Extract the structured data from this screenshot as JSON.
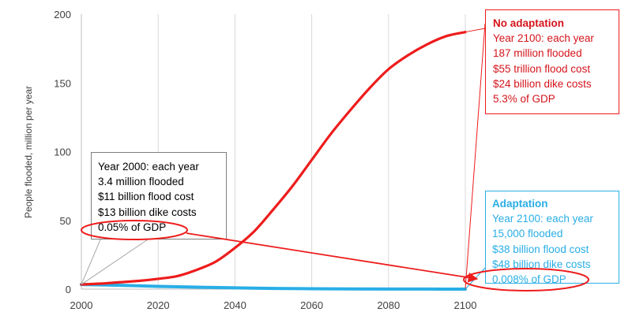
{
  "chart_data": {
    "type": "line",
    "title": "",
    "xlabel": "",
    "ylabel": "People flooded, million per year",
    "xlim": [
      2000,
      2100
    ],
    "ylim": [
      0,
      200
    ],
    "x_ticks": [
      2000,
      2020,
      2040,
      2060,
      2080,
      2100
    ],
    "y_ticks": [
      0,
      50,
      100,
      150,
      200
    ],
    "series": [
      {
        "name": "No adaptation",
        "color": "#ee1c1c",
        "x": [
          2000,
          2005,
          2010,
          2015,
          2020,
          2025,
          2030,
          2035,
          2040,
          2045,
          2050,
          2055,
          2060,
          2065,
          2070,
          2075,
          2080,
          2085,
          2090,
          2095,
          2100
        ],
        "y": [
          3.4,
          4,
          5,
          6,
          7.5,
          9.5,
          14,
          20,
          30,
          42,
          58,
          75,
          94,
          113,
          130,
          146,
          160,
          170,
          178,
          184,
          187
        ]
      },
      {
        "name": "Adaptation",
        "color": "#29aee6",
        "x": [
          2000,
          2010,
          2020,
          2030,
          2040,
          2050,
          2060,
          2070,
          2080,
          2090,
          2100
        ],
        "y": [
          3.4,
          2.8,
          2.0,
          1.4,
          0.9,
          0.5,
          0.3,
          0.15,
          0.08,
          0.04,
          0.015
        ]
      }
    ],
    "annotations": {
      "year2000": {
        "lines": [
          "Year 2000: each year",
          "3.4 million flooded",
          "$11 billion flood cost",
          "$13 billion dike costs"
        ],
        "gdp": "0.05% of GDP"
      },
      "no_adaptation": {
        "heading": "No adaptation",
        "lines": [
          "Year 2100: each year",
          "187 million flooded",
          "$55 trillion flood cost",
          "$24 billion dike costs",
          "5.3% of GDP"
        ]
      },
      "adaptation": {
        "heading": "Adaptation",
        "lines": [
          "Year 2100: each year",
          "15,000 flooded",
          "$38 billion flood cost",
          "$48 billion dike costs"
        ],
        "gdp": "0.008% of GDP"
      }
    }
  }
}
